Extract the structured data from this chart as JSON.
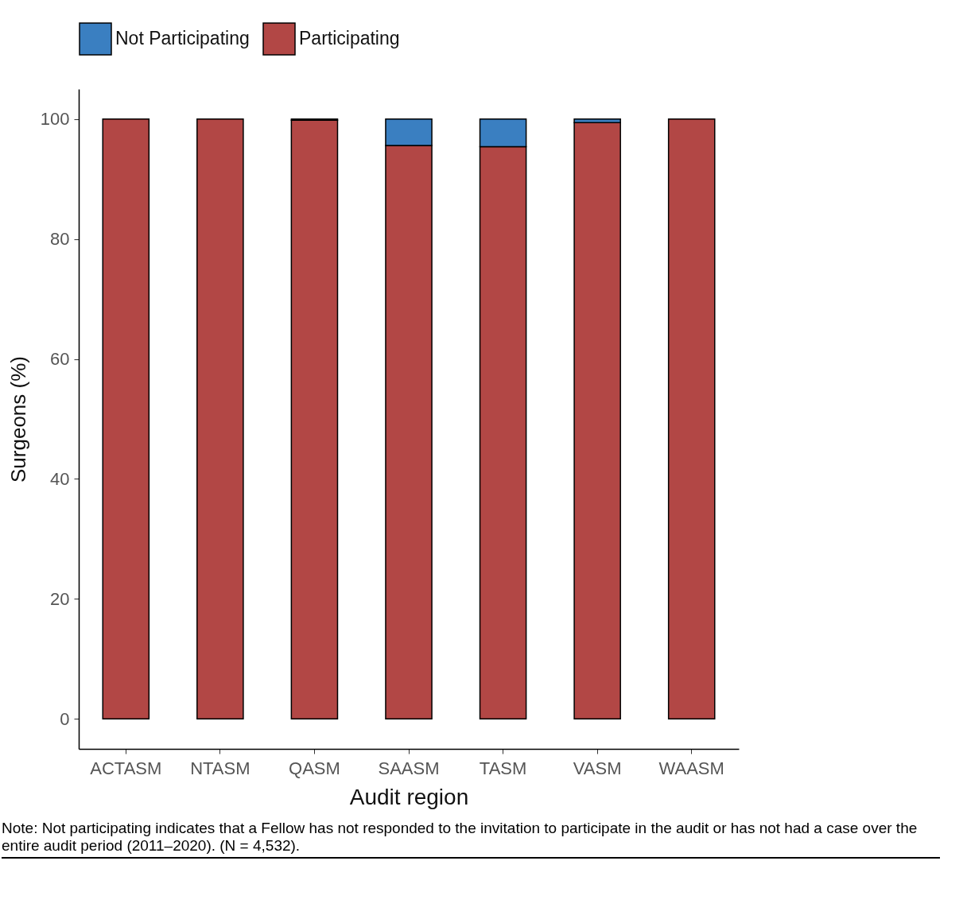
{
  "chart_data": {
    "type": "bar",
    "stacked": true,
    "xlabel": "Audit region",
    "ylabel": "Surgeons (%)",
    "categories": [
      "ACTASM",
      "NTASM",
      "QASM",
      "SAASM",
      "TASM",
      "VASM",
      "WAASM"
    ],
    "series": [
      {
        "name": "Participating",
        "color": "#b24745",
        "values": [
          100,
          100,
          99.8,
          95.6,
          95.4,
          99.4,
          100
        ]
      },
      {
        "name": "Not Participating",
        "color": "#3a7fc1",
        "values": [
          0,
          0,
          0.2,
          4.4,
          4.6,
          0.6,
          0
        ]
      }
    ],
    "ylim": [
      -5,
      105
    ],
    "yticks": [
      0,
      20,
      40,
      60,
      80,
      100
    ],
    "grid": false,
    "legend": "top",
    "annotations": [
      "Note: Not participating indicates that a Fellow has not responded to the invitation to participate in the audit or has not had a case over the entire audit period (2011–2020). (N = 4,532)."
    ]
  }
}
